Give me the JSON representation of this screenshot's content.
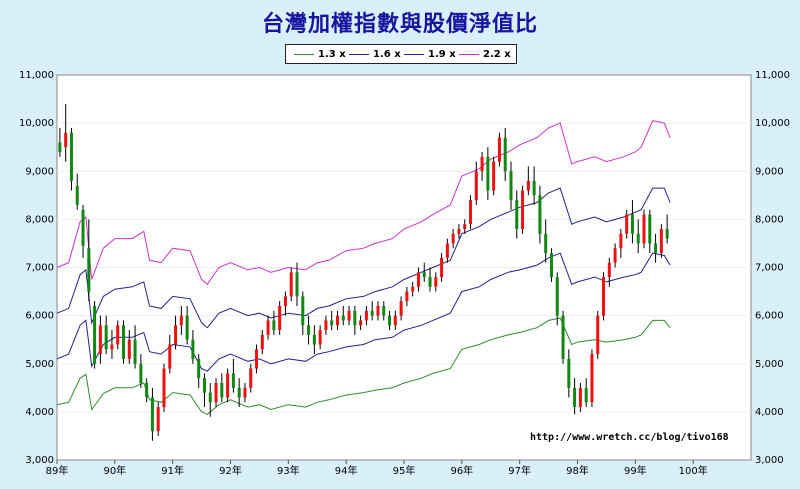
{
  "chart_data": {
    "type": "line",
    "title": "台灣加權指數與股價淨值比",
    "legend_position": "top-center",
    "annotation": "http://www.wretch.cc/blog/tivo168",
    "y_ticks": [
      "3,000",
      "4,000",
      "5,000",
      "6,000",
      "7,000",
      "8,000",
      "9,000",
      "10,000",
      "11,000"
    ],
    "x_ticks": [
      "89年",
      "90年",
      "91年",
      "92年",
      "93年",
      "94年",
      "95年",
      "96年",
      "97年",
      "98年",
      "99年",
      "100年"
    ],
    "ylim": [
      3000,
      11000
    ],
    "xlim": [
      89,
      100
    ],
    "colors": {
      "1.3 x": "#2e8b2e",
      "1.6 x": "#22228a",
      "1.9 x": "#22228a",
      "2.2 x": "#cc33cc",
      "up": "#ee1111",
      "down": "#118811"
    },
    "series": [
      {
        "name": "1.3 x",
        "x": [
          89.0,
          89.2,
          89.4,
          89.5,
          89.6,
          89.8,
          90.0,
          90.3,
          90.5,
          90.6,
          90.8,
          91.0,
          91.3,
          91.5,
          91.6,
          91.8,
          92.0,
          92.3,
          92.5,
          92.7,
          93.0,
          93.3,
          93.5,
          93.7,
          94.0,
          94.3,
          94.5,
          94.8,
          95.0,
          95.3,
          95.5,
          95.8,
          96.0,
          96.3,
          96.5,
          96.8,
          97.0,
          97.3,
          97.5,
          97.7,
          97.9,
          98.0,
          98.3,
          98.5,
          98.8,
          99.0,
          99.1,
          99.3,
          99.5,
          99.6
        ],
        "values": [
          4150,
          4200,
          4700,
          4780,
          4050,
          4380,
          4500,
          4500,
          4600,
          4250,
          4200,
          4400,
          4350,
          4000,
          3950,
          4150,
          4250,
          4100,
          4150,
          4050,
          4150,
          4100,
          4200,
          4250,
          4350,
          4400,
          4450,
          4500,
          4600,
          4700,
          4800,
          4900,
          5300,
          5400,
          5500,
          5600,
          5650,
          5750,
          5900,
          5950,
          5400,
          5450,
          5500,
          5450,
          5500,
          5550,
          5600,
          5900,
          5900,
          5750
        ]
      },
      {
        "name": "1.6 x",
        "x": [
          89.0,
          89.2,
          89.4,
          89.5,
          89.6,
          89.8,
          90.0,
          90.3,
          90.5,
          90.6,
          90.8,
          91.0,
          91.3,
          91.5,
          91.6,
          91.8,
          92.0,
          92.3,
          92.5,
          92.7,
          93.0,
          93.3,
          93.5,
          93.7,
          94.0,
          94.3,
          94.5,
          94.8,
          95.0,
          95.3,
          95.5,
          95.8,
          96.0,
          96.3,
          96.5,
          96.8,
          97.0,
          97.3,
          97.5,
          97.7,
          97.9,
          98.0,
          98.3,
          98.5,
          98.8,
          99.0,
          99.1,
          99.3,
          99.5,
          99.6
        ],
        "values": [
          5100,
          5200,
          5800,
          5900,
          4950,
          5400,
          5550,
          5550,
          5650,
          5250,
          5200,
          5400,
          5350,
          4900,
          4850,
          5100,
          5200,
          5050,
          5100,
          5000,
          5100,
          5050,
          5200,
          5250,
          5350,
          5400,
          5500,
          5550,
          5700,
          5800,
          5900,
          6050,
          6500,
          6600,
          6750,
          6900,
          6950,
          7050,
          7200,
          7300,
          6650,
          6700,
          6800,
          6700,
          6800,
          6850,
          6900,
          7300,
          7250,
          7050
        ]
      },
      {
        "name": "1.9 x",
        "x": [
          89.0,
          89.2,
          89.4,
          89.5,
          89.6,
          89.8,
          90.0,
          90.3,
          90.5,
          90.6,
          90.8,
          91.0,
          91.3,
          91.5,
          91.6,
          91.8,
          92.0,
          92.3,
          92.5,
          92.7,
          93.0,
          93.3,
          93.5,
          93.7,
          94.0,
          94.3,
          94.5,
          94.8,
          95.0,
          95.3,
          95.5,
          95.8,
          96.0,
          96.3,
          96.5,
          96.8,
          97.0,
          97.3,
          97.5,
          97.7,
          97.9,
          98.0,
          98.3,
          98.5,
          98.8,
          99.0,
          99.1,
          99.3,
          99.5,
          99.6
        ],
        "values": [
          6050,
          6150,
          6850,
          6950,
          5850,
          6400,
          6550,
          6600,
          6700,
          6200,
          6150,
          6400,
          6350,
          5850,
          5750,
          6050,
          6150,
          6000,
          6050,
          5950,
          6050,
          6000,
          6150,
          6200,
          6350,
          6400,
          6500,
          6600,
          6750,
          6900,
          7000,
          7150,
          7700,
          7850,
          8000,
          8150,
          8250,
          8350,
          8550,
          8650,
          7900,
          7950,
          8050,
          7950,
          8050,
          8150,
          8200,
          8650,
          8650,
          8350
        ]
      },
      {
        "name": "2.2 x",
        "x": [
          89.0,
          89.2,
          89.4,
          89.5,
          89.6,
          89.8,
          90.0,
          90.3,
          90.5,
          90.6,
          90.8,
          91.0,
          91.3,
          91.5,
          91.6,
          91.8,
          92.0,
          92.3,
          92.5,
          92.7,
          93.0,
          93.3,
          93.5,
          93.7,
          94.0,
          94.3,
          94.5,
          94.8,
          95.0,
          95.3,
          95.5,
          95.8,
          96.0,
          96.3,
          96.5,
          96.8,
          97.0,
          97.3,
          97.5,
          97.7,
          97.9,
          98.0,
          98.3,
          98.5,
          98.8,
          99.0,
          99.1,
          99.3,
          99.5,
          99.6
        ],
        "values": [
          7000,
          7100,
          7950,
          8050,
          6750,
          7400,
          7600,
          7600,
          7750,
          7150,
          7100,
          7400,
          7350,
          6750,
          6650,
          7000,
          7100,
          6950,
          7000,
          6900,
          7000,
          6950,
          7100,
          7150,
          7350,
          7400,
          7500,
          7600,
          7800,
          7950,
          8100,
          8300,
          8900,
          9050,
          9250,
          9400,
          9550,
          9700,
          9900,
          10000,
          9150,
          9200,
          9300,
          9200,
          9300,
          9400,
          9500,
          10050,
          10000,
          9700
        ]
      }
    ],
    "candles": [
      [
        89.05,
        9600,
        9900,
        9400,
        9300
      ],
      [
        89.15,
        9500,
        10400,
        9800,
        9200
      ],
      [
        89.25,
        9800,
        9900,
        8800,
        8600
      ],
      [
        89.35,
        8700,
        8950,
        8300,
        8200
      ],
      [
        89.45,
        8200,
        8300,
        7450,
        7200
      ],
      [
        89.55,
        7400,
        8000,
        6500,
        6300
      ],
      [
        89.65,
        6200,
        6300,
        5000,
        4900
      ],
      [
        89.75,
        5200,
        6000,
        5800,
        5000
      ],
      [
        89.85,
        5800,
        6000,
        5300,
        5200
      ],
      [
        89.95,
        5300,
        5700,
        5400,
        5100
      ],
      [
        90.05,
        5400,
        5900,
        5800,
        5300
      ],
      [
        90.15,
        5800,
        5900,
        5100,
        5000
      ],
      [
        90.25,
        5100,
        5700,
        5500,
        5000
      ],
      [
        90.35,
        5500,
        5800,
        5000,
        4900
      ],
      [
        90.45,
        5000,
        5200,
        4600,
        4500
      ],
      [
        90.55,
        4600,
        4700,
        4300,
        4200
      ],
      [
        90.65,
        4300,
        4500,
        3600,
        3400
      ],
      [
        90.75,
        3600,
        4200,
        4100,
        3500
      ],
      [
        90.85,
        4100,
        5000,
        4900,
        4000
      ],
      [
        90.95,
        4900,
        5600,
        5400,
        4800
      ],
      [
        91.05,
        5400,
        6000,
        5800,
        5300
      ],
      [
        91.15,
        5800,
        6200,
        6000,
        5600
      ],
      [
        91.25,
        6000,
        6200,
        5500,
        5400
      ],
      [
        91.35,
        5500,
        5700,
        5100,
        5000
      ],
      [
        91.45,
        5100,
        5200,
        4700,
        4500
      ],
      [
        91.55,
        4700,
        4800,
        4400,
        4100
      ],
      [
        91.65,
        4400,
        4600,
        4200,
        3900
      ],
      [
        91.75,
        4200,
        4700,
        4600,
        4100
      ],
      [
        91.85,
        4600,
        4800,
        4300,
        4200
      ],
      [
        91.95,
        4300,
        4900,
        4800,
        4200
      ],
      [
        92.05,
        4800,
        5100,
        4500,
        4400
      ],
      [
        92.15,
        4500,
        4700,
        4300,
        4100
      ],
      [
        92.25,
        4300,
        4600,
        4500,
        4200
      ],
      [
        92.35,
        4500,
        5000,
        4900,
        4400
      ],
      [
        92.45,
        4900,
        5400,
        5300,
        4800
      ],
      [
        92.55,
        5300,
        5700,
        5600,
        5200
      ],
      [
        92.65,
        5600,
        6000,
        5900,
        5500
      ],
      [
        92.75,
        5900,
        6100,
        5700,
        5600
      ],
      [
        92.85,
        5700,
        6300,
        6200,
        5600
      ],
      [
        92.95,
        6200,
        6500,
        6400,
        6000
      ],
      [
        93.05,
        6400,
        7000,
        6900,
        6300
      ],
      [
        93.15,
        6900,
        7100,
        6400,
        6200
      ],
      [
        93.25,
        6400,
        6500,
        5800,
        5600
      ],
      [
        93.35,
        5800,
        6000,
        5600,
        5400
      ],
      [
        93.45,
        5600,
        5800,
        5400,
        5200
      ],
      [
        93.55,
        5400,
        5800,
        5700,
        5300
      ],
      [
        93.65,
        5700,
        6000,
        5900,
        5600
      ],
      [
        93.75,
        5900,
        6100,
        5800,
        5700
      ],
      [
        93.85,
        5800,
        6100,
        6000,
        5700
      ],
      [
        93.95,
        6000,
        6200,
        5900,
        5800
      ],
      [
        94.05,
        5900,
        6200,
        6100,
        5800
      ],
      [
        94.15,
        6100,
        6200,
        5800,
        5600
      ],
      [
        94.25,
        5800,
        6000,
        5900,
        5700
      ],
      [
        94.35,
        5900,
        6200,
        6100,
        5800
      ],
      [
        94.45,
        6100,
        6300,
        6000,
        5900
      ],
      [
        94.55,
        6000,
        6300,
        6200,
        5900
      ],
      [
        94.65,
        6200,
        6300,
        6000,
        5900
      ],
      [
        94.75,
        6000,
        6100,
        5800,
        5700
      ],
      [
        94.85,
        5800,
        6100,
        6000,
        5700
      ],
      [
        94.95,
        6000,
        6400,
        6300,
        5900
      ],
      [
        95.05,
        6300,
        6600,
        6500,
        6200
      ],
      [
        95.15,
        6500,
        6700,
        6600,
        6400
      ],
      [
        95.25,
        6600,
        7000,
        6900,
        6500
      ],
      [
        95.35,
        6900,
        7100,
        6800,
        6700
      ],
      [
        95.45,
        6800,
        7000,
        6600,
        6500
      ],
      [
        95.55,
        6600,
        6900,
        6800,
        6500
      ],
      [
        95.65,
        6800,
        7300,
        7200,
        6700
      ],
      [
        95.75,
        7200,
        7600,
        7500,
        7100
      ],
      [
        95.85,
        7500,
        7800,
        7700,
        7400
      ],
      [
        95.95,
        7700,
        7900,
        7800,
        7600
      ],
      [
        96.05,
        7800,
        8000,
        7900,
        7700
      ],
      [
        96.15,
        7900,
        8500,
        8400,
        7800
      ],
      [
        96.25,
        8400,
        9200,
        9000,
        8300
      ],
      [
        96.35,
        9000,
        9400,
        9300,
        8800
      ],
      [
        96.45,
        9300,
        9500,
        8600,
        8400
      ],
      [
        96.55,
        8600,
        9300,
        9200,
        8500
      ],
      [
        96.65,
        9200,
        9800,
        9700,
        9100
      ],
      [
        96.75,
        9700,
        9900,
        9000,
        8800
      ],
      [
        96.85,
        9000,
        9200,
        8400,
        8200
      ],
      [
        96.95,
        8400,
        8600,
        7800,
        7600
      ],
      [
        97.05,
        7800,
        8700,
        8600,
        7700
      ],
      [
        97.15,
        8600,
        9100,
        8800,
        8500
      ],
      [
        97.25,
        8800,
        9100,
        8500,
        8300
      ],
      [
        97.35,
        8500,
        8700,
        7700,
        7500
      ],
      [
        97.45,
        7700,
        8000,
        7300,
        7100
      ],
      [
        97.55,
        7300,
        7400,
        6800,
        6700
      ],
      [
        97.65,
        6800,
        6900,
        6000,
        5800
      ],
      [
        97.75,
        6000,
        6100,
        5100,
        5000
      ],
      [
        97.85,
        5100,
        5300,
        4500,
        4300
      ],
      [
        97.95,
        4500,
        4700,
        4100,
        3950
      ],
      [
        98.05,
        4100,
        4600,
        4500,
        4000
      ],
      [
        98.15,
        4500,
        4700,
        4200,
        4100
      ],
      [
        98.25,
        4200,
        5300,
        5200,
        4100
      ],
      [
        98.35,
        5200,
        6100,
        6000,
        5100
      ],
      [
        98.45,
        6000,
        6900,
        6800,
        5900
      ],
      [
        98.55,
        6800,
        7200,
        7100,
        6600
      ],
      [
        98.65,
        7100,
        7500,
        7400,
        7000
      ],
      [
        98.75,
        7400,
        7800,
        7700,
        7200
      ],
      [
        98.85,
        7700,
        8200,
        8100,
        7600
      ],
      [
        98.95,
        8100,
        8400,
        7700,
        7500
      ],
      [
        99.05,
        7700,
        8000,
        7500,
        7300
      ],
      [
        99.15,
        7500,
        8200,
        8100,
        7400
      ],
      [
        99.25,
        8100,
        8200,
        7500,
        7300
      ],
      [
        99.35,
        7500,
        7700,
        7300,
        7100
      ],
      [
        99.45,
        7300,
        7900,
        7800,
        7200
      ],
      [
        99.55,
        7800,
        8100,
        7600,
        7500
      ]
    ]
  }
}
